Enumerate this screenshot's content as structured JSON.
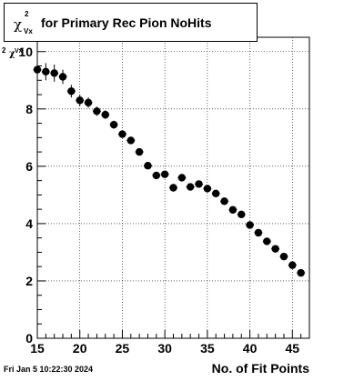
{
  "title": {
    "symbol": "χ",
    "superscript": "2",
    "subscript": "Vx",
    "text": "for Primary Rec Pion NoHits"
  },
  "ylabel": {
    "superscript": "2",
    "symbol": "χ",
    "subscript": "Vx"
  },
  "footer": {
    "timestamp": "Fri Jan  5 10:22:30 2024"
  },
  "chart_data": {
    "type": "scatter",
    "title": "χ²_Vx for Primary Rec Pion NoHits",
    "xlabel": "No. of Fit Points",
    "ylabel": "χ²_Vx",
    "xlim": [
      15,
      47
    ],
    "ylim": [
      0,
      10.5
    ],
    "xticks": [
      15,
      20,
      25,
      30,
      35,
      40,
      45
    ],
    "yticks": [
      0,
      2,
      4,
      6,
      8,
      10
    ],
    "grid": true,
    "x": [
      15,
      16,
      17,
      18,
      19,
      20,
      21,
      22,
      23,
      24,
      25,
      26,
      27,
      28,
      29,
      30,
      31,
      32,
      33,
      34,
      35,
      36,
      37,
      38,
      39,
      40,
      41,
      42,
      43,
      44,
      45,
      46
    ],
    "y": [
      9.37,
      9.3,
      9.25,
      9.12,
      8.62,
      8.3,
      8.22,
      7.92,
      7.8,
      7.45,
      7.12,
      6.9,
      6.5,
      6.02,
      5.68,
      5.72,
      5.25,
      5.6,
      5.28,
      5.38,
      5.22,
      5.05,
      4.78,
      4.48,
      4.32,
      3.95,
      3.68,
      3.38,
      3.12,
      2.85,
      2.55,
      2.28
    ],
    "yerr": [
      0.32,
      0.3,
      0.3,
      0.25,
      0.22,
      0.2,
      0.18,
      0.16,
      0.15,
      0.14,
      0.12,
      0.12,
      0.1,
      0.1,
      0.09,
      0.09,
      0.09,
      0.08,
      0.08,
      0.08,
      0.08,
      0.07,
      0.07,
      0.07,
      0.07,
      0.06,
      0.06,
      0.06,
      0.06,
      0.06,
      0.06,
      0.06
    ],
    "marker_color": "#000000"
  }
}
